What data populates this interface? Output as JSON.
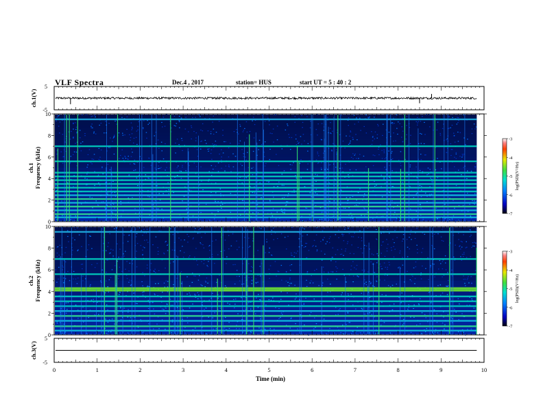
{
  "header": {
    "title": "VLF Spectra",
    "date": "Dec.4 , 2017",
    "station": "station= HUS",
    "start": "start UT = 5 : 40 : 2"
  },
  "chart_data": [
    {
      "type": "line",
      "name": "ch1-waveform",
      "ylabel": "ch.1(V)",
      "ylim": [
        -5,
        5
      ],
      "yticks": [
        "5",
        "-5"
      ],
      "xlim": [
        0,
        10
      ],
      "x_data_end": 9.83
    },
    {
      "type": "heatmap",
      "name": "ch1-spectrogram",
      "ylabel_top": "ch.1",
      "ylabel": "Frequency (kHz)",
      "ylim": [
        0,
        10
      ],
      "yticks": [
        "0",
        "2",
        "4",
        "6",
        "8",
        "10"
      ],
      "xlim": [
        0,
        10
      ],
      "x_data_end": 9.83,
      "colorbar": {
        "label": "log(PSD)(V²/Hz)",
        "range": [
          -7,
          -3
        ],
        "ticks": [
          "-3",
          "-4",
          "-5",
          "-6",
          "-7"
        ]
      },
      "bands_khz": [
        0.4,
        0.7,
        1.05,
        1.4,
        1.75,
        2.1,
        2.45,
        2.8,
        3.15,
        3.5,
        3.85,
        4.2,
        4.55,
        5.6,
        7.0,
        9.5
      ]
    },
    {
      "type": "heatmap",
      "name": "ch2-spectrogram",
      "ylabel_top": "ch.2",
      "ylabel": "Frequency (kHz)",
      "ylim": [
        0,
        10
      ],
      "yticks": [
        "0",
        "2",
        "4",
        "6",
        "8",
        "10"
      ],
      "xlim": [
        0,
        10
      ],
      "x_data_end": 9.83,
      "colorbar": {
        "label": "log(PSD)(V²/Hz)",
        "range": [
          -7,
          -3
        ],
        "ticks": [
          "-3",
          "-4",
          "-5",
          "-6",
          "-7"
        ]
      },
      "bands_khz": [
        0.4,
        0.8,
        1.3,
        1.75,
        2.2,
        2.65,
        3.1,
        3.55,
        4.1,
        4.3,
        5.6,
        7.0,
        9.5
      ]
    },
    {
      "type": "line",
      "name": "ch3-waveform",
      "ylabel": "ch.3(V)",
      "ylim": [
        -5,
        5
      ],
      "yticks": [
        "5",
        "-5"
      ],
      "xlim": [
        0,
        10
      ],
      "x_data_end": 9.83,
      "xlabel": "Time (min)",
      "xticks": [
        "0",
        "1",
        "2",
        "3",
        "4",
        "5",
        "6",
        "7",
        "8",
        "9",
        "10"
      ]
    }
  ]
}
